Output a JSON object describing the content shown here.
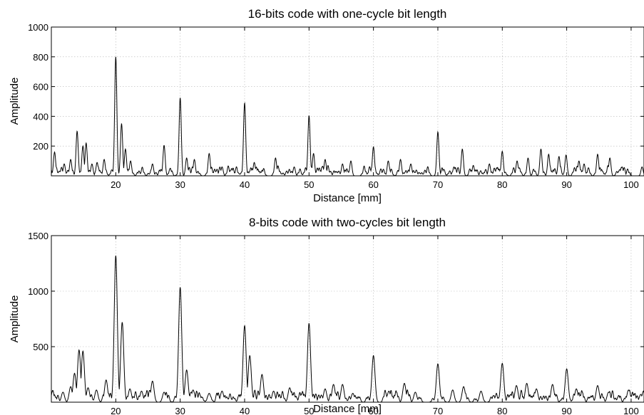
{
  "chart_data": [
    {
      "type": "line",
      "title": "16-bits code with one-cycle bit length",
      "xlabel": "Distance [mm]",
      "ylabel": "Amplitude",
      "xlim": [
        10,
        102
      ],
      "ylim": [
        0,
        1000
      ],
      "xticks": [
        20,
        30,
        40,
        50,
        60,
        70,
        80,
        90,
        100
      ],
      "yticks": [
        200,
        400,
        600,
        800,
        1000
      ],
      "xtick_labels": [
        "20",
        "30",
        "40",
        "50",
        "60",
        "70",
        "80",
        "90",
        "100"
      ],
      "ytick_labels": [
        "200",
        "400",
        "600",
        "800",
        "1000"
      ],
      "grid": true,
      "line_color": "#000000",
      "peaks": [
        {
          "x": 10.5,
          "y": 160
        },
        {
          "x": 12.0,
          "y": 80
        },
        {
          "x": 13.0,
          "y": 110
        },
        {
          "x": 14.0,
          "y": 300
        },
        {
          "x": 14.9,
          "y": 200
        },
        {
          "x": 15.4,
          "y": 220
        },
        {
          "x": 16.3,
          "y": 80
        },
        {
          "x": 17.1,
          "y": 90
        },
        {
          "x": 18.2,
          "y": 110
        },
        {
          "x": 20.0,
          "y": 800
        },
        {
          "x": 20.9,
          "y": 350
        },
        {
          "x": 21.5,
          "y": 180
        },
        {
          "x": 22.3,
          "y": 100
        },
        {
          "x": 25.7,
          "y": 80
        },
        {
          "x": 27.5,
          "y": 205
        },
        {
          "x": 30.0,
          "y": 525
        },
        {
          "x": 31.0,
          "y": 120
        },
        {
          "x": 32.2,
          "y": 110
        },
        {
          "x": 34.5,
          "y": 150
        },
        {
          "x": 36.5,
          "y": 60
        },
        {
          "x": 40.0,
          "y": 490
        },
        {
          "x": 41.5,
          "y": 90
        },
        {
          "x": 44.8,
          "y": 120
        },
        {
          "x": 47.7,
          "y": 60
        },
        {
          "x": 50.0,
          "y": 405
        },
        {
          "x": 50.7,
          "y": 150
        },
        {
          "x": 52.5,
          "y": 110
        },
        {
          "x": 55.2,
          "y": 80
        },
        {
          "x": 56.5,
          "y": 100
        },
        {
          "x": 60.0,
          "y": 195
        },
        {
          "x": 62.3,
          "y": 100
        },
        {
          "x": 64.2,
          "y": 110
        },
        {
          "x": 65.8,
          "y": 80
        },
        {
          "x": 70.0,
          "y": 295
        },
        {
          "x": 72.5,
          "y": 60
        },
        {
          "x": 73.8,
          "y": 180
        },
        {
          "x": 75.5,
          "y": 70
        },
        {
          "x": 78.0,
          "y": 80
        },
        {
          "x": 80.0,
          "y": 165
        },
        {
          "x": 82.3,
          "y": 100
        },
        {
          "x": 84.0,
          "y": 120
        },
        {
          "x": 86.0,
          "y": 180
        },
        {
          "x": 87.2,
          "y": 145
        },
        {
          "x": 88.8,
          "y": 130
        },
        {
          "x": 89.9,
          "y": 140
        },
        {
          "x": 91.9,
          "y": 100
        },
        {
          "x": 92.7,
          "y": 80
        },
        {
          "x": 94.8,
          "y": 145
        },
        {
          "x": 96.7,
          "y": 120
        },
        {
          "x": 98.6,
          "y": 60
        },
        {
          "x": 101.7,
          "y": 60
        }
      ]
    },
    {
      "type": "line",
      "title": "8-bits code with two-cycles bit length",
      "xlabel": "Distance [mm]",
      "ylabel": "Amplitude",
      "xlim": [
        10,
        102
      ],
      "ylim": [
        0,
        1500
      ],
      "xticks": [
        20,
        30,
        40,
        50,
        60,
        70,
        80,
        90,
        100
      ],
      "yticks": [
        500,
        1000,
        1500
      ],
      "xtick_labels": [
        "20",
        "30",
        "40",
        "50",
        "60",
        "70",
        "80",
        "90",
        "100"
      ],
      "ytick_labels": [
        "500",
        "1000",
        "1500"
      ],
      "grid": true,
      "line_color": "#000000",
      "peaks": [
        {
          "x": 11.8,
          "y": 90
        },
        {
          "x": 13.0,
          "y": 140
        },
        {
          "x": 13.6,
          "y": 260
        },
        {
          "x": 14.3,
          "y": 470
        },
        {
          "x": 14.9,
          "y": 460
        },
        {
          "x": 15.7,
          "y": 130
        },
        {
          "x": 17.0,
          "y": 110
        },
        {
          "x": 18.5,
          "y": 200
        },
        {
          "x": 20.0,
          "y": 1320
        },
        {
          "x": 21.0,
          "y": 720
        },
        {
          "x": 22.2,
          "y": 120
        },
        {
          "x": 24.0,
          "y": 100
        },
        {
          "x": 25.7,
          "y": 190
        },
        {
          "x": 27.5,
          "y": 90
        },
        {
          "x": 30.0,
          "y": 1035
        },
        {
          "x": 31.0,
          "y": 290
        },
        {
          "x": 32.0,
          "y": 110
        },
        {
          "x": 34.5,
          "y": 80
        },
        {
          "x": 36.5,
          "y": 100
        },
        {
          "x": 40.0,
          "y": 690
        },
        {
          "x": 40.8,
          "y": 420
        },
        {
          "x": 42.7,
          "y": 250
        },
        {
          "x": 44.5,
          "y": 100
        },
        {
          "x": 47.0,
          "y": 130
        },
        {
          "x": 50.0,
          "y": 710
        },
        {
          "x": 52.5,
          "y": 120
        },
        {
          "x": 53.8,
          "y": 160
        },
        {
          "x": 55.2,
          "y": 160
        },
        {
          "x": 56.8,
          "y": 80
        },
        {
          "x": 60.0,
          "y": 420
        },
        {
          "x": 62.4,
          "y": 100
        },
        {
          "x": 64.8,
          "y": 170
        },
        {
          "x": 66.5,
          "y": 90
        },
        {
          "x": 70.0,
          "y": 345
        },
        {
          "x": 72.3,
          "y": 110
        },
        {
          "x": 74.0,
          "y": 140
        },
        {
          "x": 76.7,
          "y": 100
        },
        {
          "x": 80.0,
          "y": 350
        },
        {
          "x": 82.2,
          "y": 150
        },
        {
          "x": 83.8,
          "y": 170
        },
        {
          "x": 85.3,
          "y": 120
        },
        {
          "x": 87.8,
          "y": 160
        },
        {
          "x": 90.0,
          "y": 300
        },
        {
          "x": 91.5,
          "y": 120
        },
        {
          "x": 94.8,
          "y": 150
        },
        {
          "x": 96.5,
          "y": 90
        },
        {
          "x": 99.6,
          "y": 110
        },
        {
          "x": 101.5,
          "y": 70
        }
      ]
    }
  ]
}
